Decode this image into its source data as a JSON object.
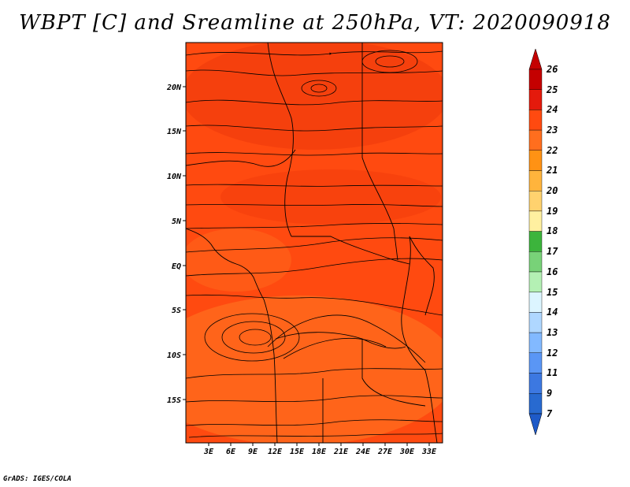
{
  "title": "WBPT [C] and Sreamline at 250hPa, VT: 2020090918",
  "credit": "GrADS: IGES/COLA",
  "map": {
    "lat_labels": [
      "20N",
      "15N",
      "10N",
      "5N",
      "EQ",
      "5S",
      "10S",
      "15S"
    ],
    "lon_labels": [
      "3E",
      "6E",
      "9E",
      "12E",
      "15E",
      "18E",
      "21E",
      "24E",
      "27E",
      "30E",
      "33E"
    ],
    "dominant_color": "#ff4a10",
    "colors": {
      "light_orange": "#ff6e1e",
      "dark_red": "#ef3a0c"
    }
  },
  "colorbar": {
    "labels": [
      "26",
      "25",
      "24",
      "23",
      "22",
      "21",
      "20",
      "19",
      "18",
      "17",
      "16",
      "15",
      "14",
      "13",
      "12",
      "11",
      "9",
      "7"
    ],
    "colors": [
      "#c40000",
      "#e41a0c",
      "#ff4a10",
      "#ff6e1e",
      "#ff9214",
      "#ffb43c",
      "#ffd26e",
      "#fff0a0",
      "#3cb43c",
      "#78d278",
      "#b4f0b4",
      "#dcf5ff",
      "#afd7ff",
      "#82b9ff",
      "#5a96f5",
      "#3c78e1",
      "#286ad0",
      "#1e5ac8"
    ]
  }
}
